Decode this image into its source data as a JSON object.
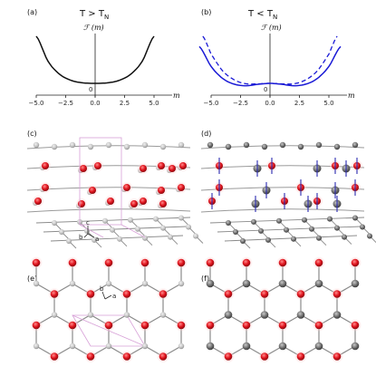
{
  "panels": {
    "a": {
      "label": "(a)",
      "title": "T > T",
      "title_sub": "N",
      "ylabel": "ℱ (m)",
      "xlabel": "m",
      "origin": "0"
    },
    "b": {
      "label": "(b)",
      "title": "T < T",
      "title_sub": "N",
      "ylabel": "ℱ (m)",
      "xlabel": "m",
      "origin": "0"
    },
    "c": {
      "label": "(c)",
      "axis_c": "c",
      "axis_b": "b",
      "axis_a": "a"
    },
    "d": {
      "label": "(d)"
    },
    "e": {
      "label": "(e)",
      "axis_b": "b",
      "axis_a": "a"
    },
    "f": {
      "label": "(f)"
    }
  },
  "colors": {
    "curve_a": "#111111",
    "curve_b": "#1a1ad6",
    "atom_red": "#e0141e",
    "atom_grey": "#6e6e6e",
    "cell": "#d7a0d7",
    "rod": "#8a8a8a"
  },
  "chart_data": [
    {
      "type": "line",
      "panel": "a",
      "title": "T > T_N",
      "xlabel": "m",
      "ylabel": "ℱ (m)",
      "xlim": [
        -6.5,
        6.5
      ],
      "xticks": [
        "−5.0",
        "−2.5",
        "0.0",
        "2.5",
        "5.0"
      ],
      "series": [
        {
          "style": "solid",
          "x": [
            -5,
            -4,
            -3,
            -2,
            -1,
            0,
            1,
            2,
            3,
            4,
            5
          ],
          "y": [
            1.0,
            0.47,
            0.19,
            0.06,
            0.01,
            0,
            0.01,
            0.06,
            0.19,
            0.47,
            1.0
          ]
        }
      ]
    },
    {
      "type": "line",
      "panel": "b",
      "title": "T < T_N",
      "xlabel": "m",
      "ylabel": "ℱ (m)",
      "xlim": [
        -6.5,
        6.5
      ],
      "xticks": [
        "−5.0",
        "−2.5",
        "0.0",
        "2.5",
        "5.0"
      ],
      "series": [
        {
          "style": "solid",
          "x": [
            -6,
            -5,
            -4,
            -3,
            -2,
            -1,
            0,
            1,
            2,
            3,
            4,
            5,
            6
          ],
          "y": [
            0.78,
            0.36,
            0.1,
            -0.02,
            -0.05,
            -0.02,
            0,
            -0.02,
            -0.05,
            -0.02,
            0.1,
            0.36,
            0.78
          ]
        },
        {
          "style": "dashed",
          "x": [
            -5.7,
            -5,
            -4,
            -3,
            -2,
            -1,
            0,
            1,
            2,
            3,
            4,
            5,
            5.7
          ],
          "y": [
            1.0,
            0.62,
            0.26,
            0.07,
            -0.01,
            -0.01,
            0,
            -0.01,
            -0.01,
            0.07,
            0.26,
            0.62,
            1.0
          ]
        }
      ]
    }
  ]
}
